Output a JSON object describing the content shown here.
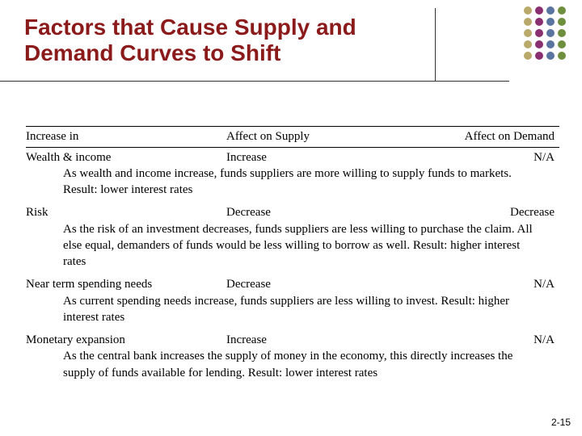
{
  "title": "Factors that Cause Supply and Demand Curves to Shift",
  "title_color": "#8b1a1a",
  "page_number": "2-15",
  "dot_grid": {
    "rows": 5,
    "colors": [
      "#b9a96b",
      "#8a2f6f",
      "#5a74a0",
      "#6f8f3e"
    ]
  },
  "table": {
    "headers": {
      "c1": "Increase in",
      "c2": "Affect on Supply",
      "c3": "Affect on Demand"
    },
    "rows": [
      {
        "c1": "Wealth & income",
        "c2": "Increase",
        "c3": "N/A",
        "desc": "As wealth and income increase, funds suppliers are more willing to supply funds to markets.  Result:  lower interest rates"
      },
      {
        "c1": "Risk",
        "c2": "Decrease",
        "c3": "Decrease",
        "desc": "As the risk of an investment decreases, funds suppliers are less willing to purchase the claim.  All else equal, demanders of funds would be less willing to borrow as well.  Result: higher interest rates"
      },
      {
        "c1": "Near term spending needs",
        "c2": "Decrease",
        "c3": "N/A",
        "desc": "As current spending needs increase, funds suppliers are less willing to invest.  Result: higher interest rates"
      },
      {
        "c1": "Monetary expansion",
        "c2": "Increase",
        "c3": "N/A",
        "desc": "As the central bank increases the supply of money in the economy, this directly increases the supply of funds available for lending.  Result: lower interest rates"
      }
    ]
  }
}
